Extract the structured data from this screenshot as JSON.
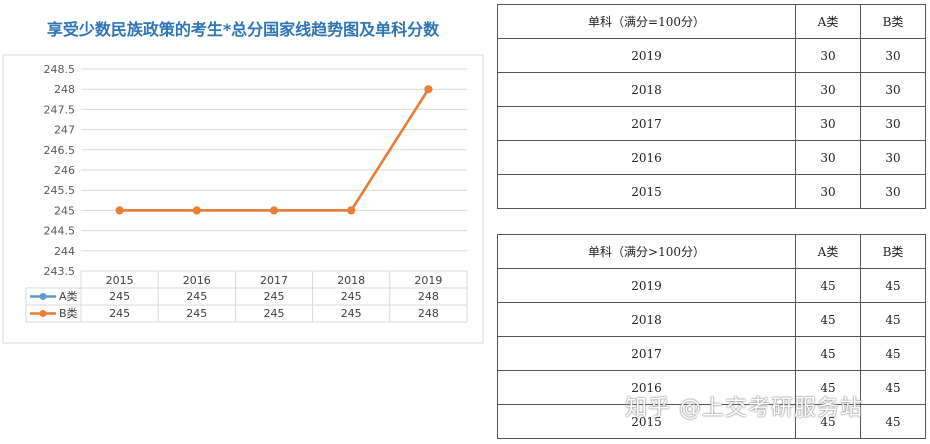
{
  "chart_data": {
    "type": "line",
    "title": "享受少数民族政策的考生*总分国家线趋势图及单科分数",
    "categories": [
      "2015",
      "2016",
      "2017",
      "2018",
      "2019"
    ],
    "series": [
      {
        "name": "A类",
        "values": [
          245,
          245,
          245,
          245,
          248
        ],
        "color": "#5B9BD5"
      },
      {
        "name": "B类",
        "values": [
          245,
          245,
          245,
          245,
          248
        ],
        "color": "#ED7D31"
      }
    ],
    "ylim": [
      243.5,
      248.5
    ],
    "yticks": [
      243.5,
      244,
      244.5,
      245,
      245.5,
      246,
      246.5,
      247,
      247.5,
      248,
      248.5
    ],
    "ytick_labels": [
      "243.5",
      "244",
      "244.5",
      "245",
      "245.5",
      "246",
      "246.5",
      "247",
      "247.5",
      "248",
      "248.5"
    ],
    "grid": true,
    "legend": "data-table-below"
  },
  "table1": {
    "headers": [
      "单科（满分=100分）",
      "A类",
      "B类"
    ],
    "rows": [
      [
        "2019",
        "30",
        "30"
      ],
      [
        "2018",
        "30",
        "30"
      ],
      [
        "2017",
        "30",
        "30"
      ],
      [
        "2016",
        "30",
        "30"
      ],
      [
        "2015",
        "30",
        "30"
      ]
    ]
  },
  "table2": {
    "headers": [
      "单科（满分>100分）",
      "A类",
      "B类"
    ],
    "rows": [
      [
        "2019",
        "45",
        "45"
      ],
      [
        "2018",
        "45",
        "45"
      ],
      [
        "2017",
        "45",
        "45"
      ],
      [
        "2016",
        "45",
        "45"
      ],
      [
        "2015",
        "45",
        "45"
      ]
    ]
  },
  "watermark": "知乎 @上交考研服务站"
}
